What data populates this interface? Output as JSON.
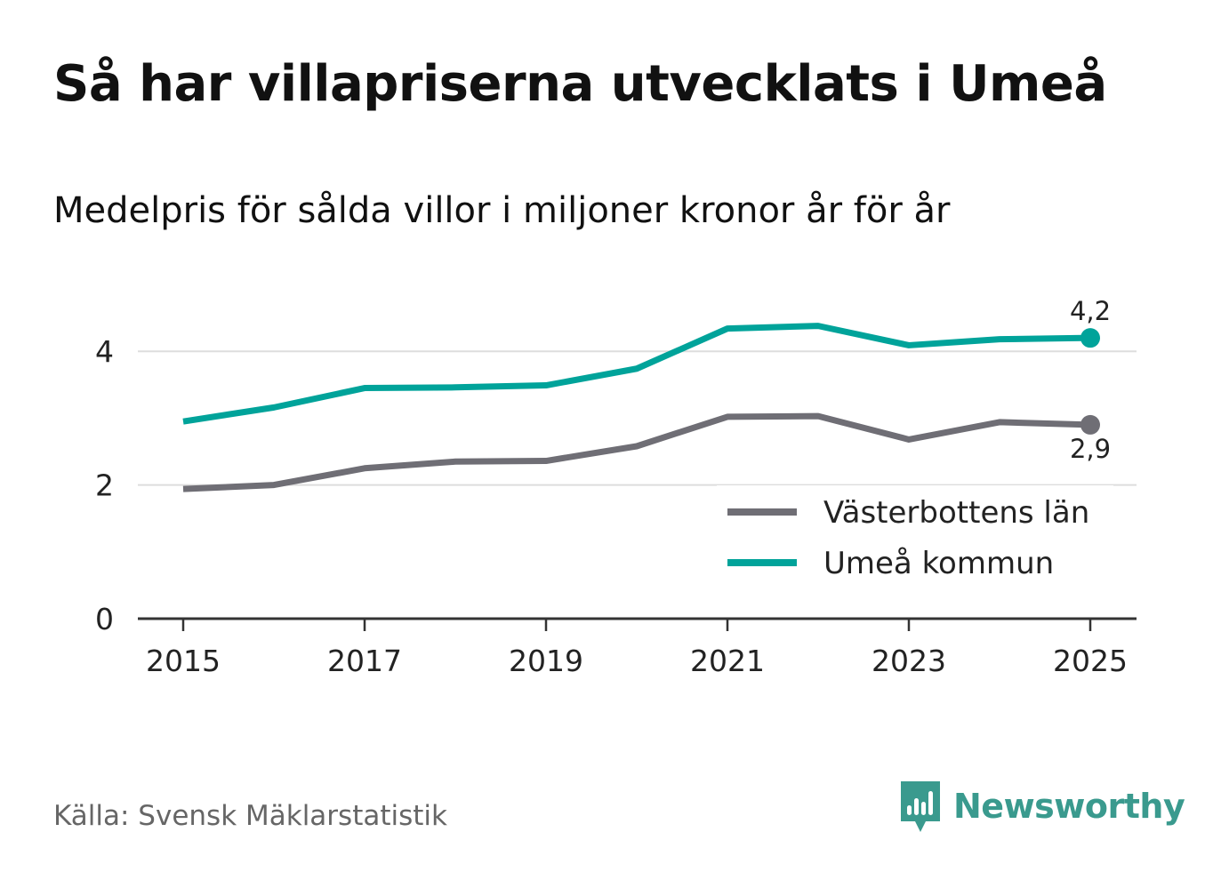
{
  "title": "Så har villapriserna utvecklats i Umeå",
  "subtitle": "Medelpris för sålda villor i miljoner kronor år för år",
  "source": "Källa: Svensk Mäklarstatistik",
  "logo": {
    "text": "Newsworthy",
    "color": "#3a9a8e",
    "icon": "newsworthy-logo-icon"
  },
  "colors": {
    "grid": "#dddddd",
    "axis": "#333333",
    "text": "#222222"
  },
  "chart_data": {
    "type": "line",
    "title": "Så har villapriserna utvecklats i Umeå",
    "subtitle": "Medelpris för sålda villor i miljoner kronor år för år",
    "xlabel": "",
    "ylabel": "",
    "x": [
      2015,
      2016,
      2017,
      2018,
      2019,
      2020,
      2021,
      2022,
      2023,
      2024,
      2025
    ],
    "xticks": [
      "2015",
      "2017",
      "2019",
      "2021",
      "2023",
      "2025"
    ],
    "yticks": [
      "0",
      "2",
      "4"
    ],
    "ylim": [
      0,
      4.8
    ],
    "grid": true,
    "legend_position": "bottom-right",
    "series": [
      {
        "name": "Västerbottens län",
        "color": "#6f6e75",
        "values": [
          1.94,
          2.0,
          2.25,
          2.35,
          2.36,
          2.58,
          3.02,
          3.03,
          2.68,
          2.94,
          2.9
        ],
        "end_label": "2,9",
        "label_position": "below"
      },
      {
        "name": "Umeå kommun",
        "color": "#00a39a",
        "values": [
          2.95,
          3.16,
          3.45,
          3.46,
          3.49,
          3.74,
          4.34,
          4.38,
          4.09,
          4.18,
          4.2
        ],
        "end_label": "4,2",
        "label_position": "above"
      }
    ]
  }
}
